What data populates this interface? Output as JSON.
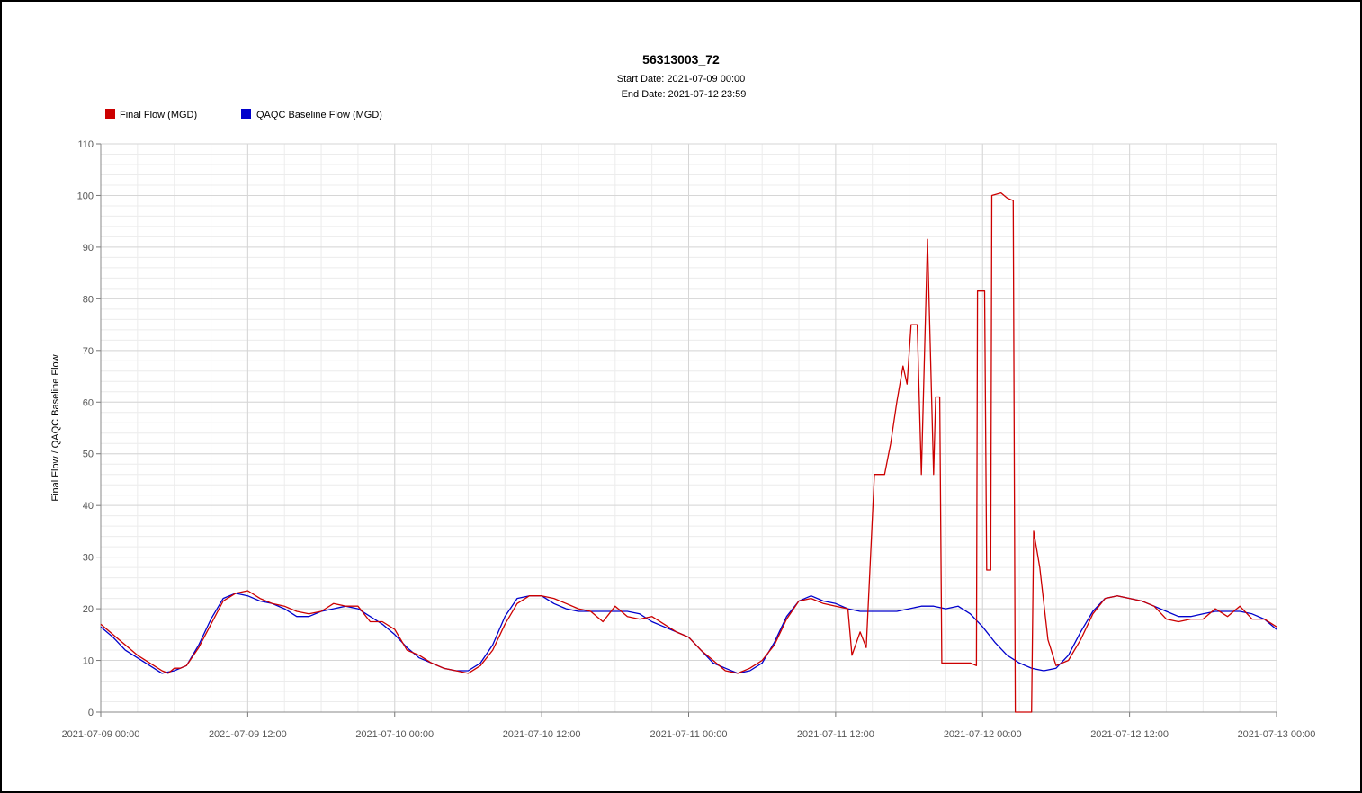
{
  "chart_data": {
    "type": "line",
    "title": "56313003_72",
    "subtitle_start": "Start Date: 2021-07-09 00:00",
    "subtitle_end": "End Date: 2021-07-12 23:59",
    "ylabel": "Final Flow / QAQC Baseline Flow",
    "xlabel": "",
    "ylim": [
      0,
      110
    ],
    "yticks": [
      0,
      10,
      20,
      30,
      40,
      50,
      60,
      70,
      80,
      90,
      100,
      110
    ],
    "xlim": [
      "2021-07-09 00:00",
      "2021-07-13 00:00"
    ],
    "xtick_labels": [
      "2021-07-09 00:00",
      "2021-07-09 12:00",
      "2021-07-10 00:00",
      "2021-07-10 12:00",
      "2021-07-11 00:00",
      "2021-07-11 12:00",
      "2021-07-12 00:00",
      "2021-07-12 12:00",
      "2021-07-13 00:00"
    ],
    "grid": true,
    "legend_position": "top-left",
    "series": [
      {
        "name": "Final Flow (MGD)",
        "color": "#cc0000",
        "points": [
          [
            "2021-07-09 00:00",
            17
          ],
          [
            "2021-07-09 01:00",
            15
          ],
          [
            "2021-07-09 02:00",
            13
          ],
          [
            "2021-07-09 03:00",
            11
          ],
          [
            "2021-07-09 04:00",
            9.5
          ],
          [
            "2021-07-09 05:00",
            8
          ],
          [
            "2021-07-09 05:30",
            7.5
          ],
          [
            "2021-07-09 06:00",
            8.5
          ],
          [
            "2021-07-09 06:30",
            8.5
          ],
          [
            "2021-07-09 07:00",
            9
          ],
          [
            "2021-07-09 08:00",
            12.5
          ],
          [
            "2021-07-09 09:00",
            17
          ],
          [
            "2021-07-09 10:00",
            21.5
          ],
          [
            "2021-07-09 11:00",
            23
          ],
          [
            "2021-07-09 12:00",
            23.5
          ],
          [
            "2021-07-09 13:00",
            22
          ],
          [
            "2021-07-09 14:00",
            21
          ],
          [
            "2021-07-09 15:00",
            20.5
          ],
          [
            "2021-07-09 16:00",
            19.5
          ],
          [
            "2021-07-09 17:00",
            19
          ],
          [
            "2021-07-09 18:00",
            19.5
          ],
          [
            "2021-07-09 19:00",
            21
          ],
          [
            "2021-07-09 20:00",
            20.5
          ],
          [
            "2021-07-09 21:00",
            20.5
          ],
          [
            "2021-07-09 22:00",
            17.5
          ],
          [
            "2021-07-09 23:00",
            17.5
          ],
          [
            "2021-07-10 00:00",
            16
          ],
          [
            "2021-07-10 01:00",
            12
          ],
          [
            "2021-07-10 02:00",
            11
          ],
          [
            "2021-07-10 03:00",
            9.5
          ],
          [
            "2021-07-10 04:00",
            8.5
          ],
          [
            "2021-07-10 05:00",
            8
          ],
          [
            "2021-07-10 06:00",
            7.5
          ],
          [
            "2021-07-10 07:00",
            9
          ],
          [
            "2021-07-10 08:00",
            12
          ],
          [
            "2021-07-10 09:00",
            17
          ],
          [
            "2021-07-10 10:00",
            21
          ],
          [
            "2021-07-10 11:00",
            22.5
          ],
          [
            "2021-07-10 12:00",
            22.5
          ],
          [
            "2021-07-10 13:00",
            22
          ],
          [
            "2021-07-10 14:00",
            21
          ],
          [
            "2021-07-10 15:00",
            20
          ],
          [
            "2021-07-10 16:00",
            19.5
          ],
          [
            "2021-07-10 17:00",
            17.5
          ],
          [
            "2021-07-10 18:00",
            20.5
          ],
          [
            "2021-07-10 19:00",
            18.5
          ],
          [
            "2021-07-10 20:00",
            18
          ],
          [
            "2021-07-10 21:00",
            18.5
          ],
          [
            "2021-07-10 22:00",
            17
          ],
          [
            "2021-07-10 23:00",
            15.5
          ],
          [
            "2021-07-11 00:00",
            14.5
          ],
          [
            "2021-07-11 01:00",
            12
          ],
          [
            "2021-07-11 02:00",
            10
          ],
          [
            "2021-07-11 03:00",
            8
          ],
          [
            "2021-07-11 04:00",
            7.5
          ],
          [
            "2021-07-11 05:00",
            8.5
          ],
          [
            "2021-07-11 06:00",
            10
          ],
          [
            "2021-07-11 07:00",
            13
          ],
          [
            "2021-07-11 08:00",
            18
          ],
          [
            "2021-07-11 09:00",
            21.5
          ],
          [
            "2021-07-11 10:00",
            22
          ],
          [
            "2021-07-11 11:00",
            21
          ],
          [
            "2021-07-11 12:00",
            20.5
          ],
          [
            "2021-07-11 13:00",
            20
          ],
          [
            "2021-07-11 13:20",
            11
          ],
          [
            "2021-07-11 14:00",
            15.5
          ],
          [
            "2021-07-11 14:30",
            12.5
          ],
          [
            "2021-07-11 15:10",
            46
          ],
          [
            "2021-07-11 16:00",
            46
          ],
          [
            "2021-07-11 16:30",
            52
          ],
          [
            "2021-07-11 17:00",
            60
          ],
          [
            "2021-07-11 17:30",
            67
          ],
          [
            "2021-07-11 17:50",
            63.5
          ],
          [
            "2021-07-11 18:10",
            75
          ],
          [
            "2021-07-11 18:40",
            75
          ],
          [
            "2021-07-11 19:00",
            46
          ],
          [
            "2021-07-11 19:30",
            91.5
          ],
          [
            "2021-07-11 20:00",
            46
          ],
          [
            "2021-07-11 20:10",
            61
          ],
          [
            "2021-07-11 20:30",
            61
          ],
          [
            "2021-07-11 20:40",
            9.5
          ],
          [
            "2021-07-11 21:00",
            9.5
          ],
          [
            "2021-07-11 22:00",
            9.5
          ],
          [
            "2021-07-11 23:00",
            9.5
          ],
          [
            "2021-07-11 23:30",
            9
          ],
          [
            "2021-07-11 23:35",
            81.5
          ],
          [
            "2021-07-11 23:50",
            81.5
          ],
          [
            "2021-07-12 00:10",
            81.5
          ],
          [
            "2021-07-12 00:20",
            27.5
          ],
          [
            "2021-07-12 00:40",
            27.5
          ],
          [
            "2021-07-12 00:45",
            100
          ],
          [
            "2021-07-12 01:30",
            100.5
          ],
          [
            "2021-07-12 02:00",
            99.5
          ],
          [
            "2021-07-12 02:30",
            99
          ],
          [
            "2021-07-12 02:40",
            0
          ],
          [
            "2021-07-12 03:00",
            0
          ],
          [
            "2021-07-12 03:30",
            0
          ],
          [
            "2021-07-12 04:00",
            0
          ],
          [
            "2021-07-12 04:10",
            35
          ],
          [
            "2021-07-12 04:40",
            28
          ],
          [
            "2021-07-12 05:20",
            14
          ],
          [
            "2021-07-12 06:00",
            9
          ],
          [
            "2021-07-12 07:00",
            10
          ],
          [
            "2021-07-12 08:00",
            14
          ],
          [
            "2021-07-12 09:00",
            19
          ],
          [
            "2021-07-12 10:00",
            22
          ],
          [
            "2021-07-12 11:00",
            22.5
          ],
          [
            "2021-07-12 12:00",
            22
          ],
          [
            "2021-07-12 13:00",
            21.5
          ],
          [
            "2021-07-12 14:00",
            20.5
          ],
          [
            "2021-07-12 15:00",
            18
          ],
          [
            "2021-07-12 16:00",
            17.5
          ],
          [
            "2021-07-12 17:00",
            18
          ],
          [
            "2021-07-12 18:00",
            18
          ],
          [
            "2021-07-12 19:00",
            20
          ],
          [
            "2021-07-12 20:00",
            18.5
          ],
          [
            "2021-07-12 21:00",
            20.5
          ],
          [
            "2021-07-12 22:00",
            18
          ],
          [
            "2021-07-12 23:00",
            18
          ],
          [
            "2021-07-13 00:00",
            16.5
          ]
        ]
      },
      {
        "name": "QAQC Baseline Flow (MGD)",
        "color": "#0000cc",
        "points": [
          [
            "2021-07-09 00:00",
            16.5
          ],
          [
            "2021-07-09 01:00",
            14.5
          ],
          [
            "2021-07-09 02:00",
            12
          ],
          [
            "2021-07-09 03:00",
            10.5
          ],
          [
            "2021-07-09 04:00",
            9
          ],
          [
            "2021-07-09 05:00",
            7.5
          ],
          [
            "2021-07-09 06:00",
            8
          ],
          [
            "2021-07-09 07:00",
            9
          ],
          [
            "2021-07-09 08:00",
            13
          ],
          [
            "2021-07-09 09:00",
            18
          ],
          [
            "2021-07-09 10:00",
            22
          ],
          [
            "2021-07-09 11:00",
            23
          ],
          [
            "2021-07-09 12:00",
            22.5
          ],
          [
            "2021-07-09 13:00",
            21.5
          ],
          [
            "2021-07-09 14:00",
            21
          ],
          [
            "2021-07-09 15:00",
            20
          ],
          [
            "2021-07-09 16:00",
            18.5
          ],
          [
            "2021-07-09 17:00",
            18.5
          ],
          [
            "2021-07-09 18:00",
            19.5
          ],
          [
            "2021-07-09 19:00",
            20
          ],
          [
            "2021-07-09 20:00",
            20.5
          ],
          [
            "2021-07-09 21:00",
            20
          ],
          [
            "2021-07-09 22:00",
            18.5
          ],
          [
            "2021-07-09 23:00",
            17
          ],
          [
            "2021-07-10 00:00",
            15
          ],
          [
            "2021-07-10 01:00",
            12.5
          ],
          [
            "2021-07-10 02:00",
            10.5
          ],
          [
            "2021-07-10 03:00",
            9.5
          ],
          [
            "2021-07-10 04:00",
            8.5
          ],
          [
            "2021-07-10 05:00",
            8
          ],
          [
            "2021-07-10 06:00",
            8
          ],
          [
            "2021-07-10 07:00",
            9.5
          ],
          [
            "2021-07-10 08:00",
            13
          ],
          [
            "2021-07-10 09:00",
            18.5
          ],
          [
            "2021-07-10 10:00",
            22
          ],
          [
            "2021-07-10 11:00",
            22.5
          ],
          [
            "2021-07-10 12:00",
            22.5
          ],
          [
            "2021-07-10 13:00",
            21
          ],
          [
            "2021-07-10 14:00",
            20
          ],
          [
            "2021-07-10 15:00",
            19.5
          ],
          [
            "2021-07-10 16:00",
            19.5
          ],
          [
            "2021-07-10 17:00",
            19.5
          ],
          [
            "2021-07-10 18:00",
            19.5
          ],
          [
            "2021-07-10 19:00",
            19.5
          ],
          [
            "2021-07-10 20:00",
            19
          ],
          [
            "2021-07-10 21:00",
            17.5
          ],
          [
            "2021-07-10 22:00",
            16.5
          ],
          [
            "2021-07-10 23:00",
            15.5
          ],
          [
            "2021-07-11 00:00",
            14.5
          ],
          [
            "2021-07-11 01:00",
            12
          ],
          [
            "2021-07-11 02:00",
            9.5
          ],
          [
            "2021-07-11 03:00",
            8.5
          ],
          [
            "2021-07-11 04:00",
            7.5
          ],
          [
            "2021-07-11 05:00",
            8
          ],
          [
            "2021-07-11 06:00",
            9.5
          ],
          [
            "2021-07-11 07:00",
            13.5
          ],
          [
            "2021-07-11 08:00",
            18.5
          ],
          [
            "2021-07-11 09:00",
            21.5
          ],
          [
            "2021-07-11 10:00",
            22.5
          ],
          [
            "2021-07-11 11:00",
            21.5
          ],
          [
            "2021-07-11 12:00",
            21
          ],
          [
            "2021-07-11 13:00",
            20
          ],
          [
            "2021-07-11 14:00",
            19.5
          ],
          [
            "2021-07-11 15:00",
            19.5
          ],
          [
            "2021-07-11 16:00",
            19.5
          ],
          [
            "2021-07-11 17:00",
            19.5
          ],
          [
            "2021-07-11 18:00",
            20
          ],
          [
            "2021-07-11 19:00",
            20.5
          ],
          [
            "2021-07-11 20:00",
            20.5
          ],
          [
            "2021-07-11 21:00",
            20
          ],
          [
            "2021-07-11 22:00",
            20.5
          ],
          [
            "2021-07-11 23:00",
            19
          ],
          [
            "2021-07-12 00:00",
            16.5
          ],
          [
            "2021-07-12 01:00",
            13.5
          ],
          [
            "2021-07-12 02:00",
            11
          ],
          [
            "2021-07-12 03:00",
            9.5
          ],
          [
            "2021-07-12 04:00",
            8.5
          ],
          [
            "2021-07-12 05:00",
            8
          ],
          [
            "2021-07-12 06:00",
            8.5
          ],
          [
            "2021-07-12 07:00",
            11
          ],
          [
            "2021-07-12 08:00",
            15.5
          ],
          [
            "2021-07-12 09:00",
            19.5
          ],
          [
            "2021-07-12 10:00",
            22
          ],
          [
            "2021-07-12 11:00",
            22.5
          ],
          [
            "2021-07-12 12:00",
            22
          ],
          [
            "2021-07-12 13:00",
            21.5
          ],
          [
            "2021-07-12 14:00",
            20.5
          ],
          [
            "2021-07-12 15:00",
            19.5
          ],
          [
            "2021-07-12 16:00",
            18.5
          ],
          [
            "2021-07-12 17:00",
            18.5
          ],
          [
            "2021-07-12 18:00",
            19
          ],
          [
            "2021-07-12 19:00",
            19.5
          ],
          [
            "2021-07-12 20:00",
            19.5
          ],
          [
            "2021-07-12 21:00",
            19.5
          ],
          [
            "2021-07-12 22:00",
            19
          ],
          [
            "2021-07-12 23:00",
            18
          ],
          [
            "2021-07-13 00:00",
            16
          ]
        ]
      }
    ]
  }
}
